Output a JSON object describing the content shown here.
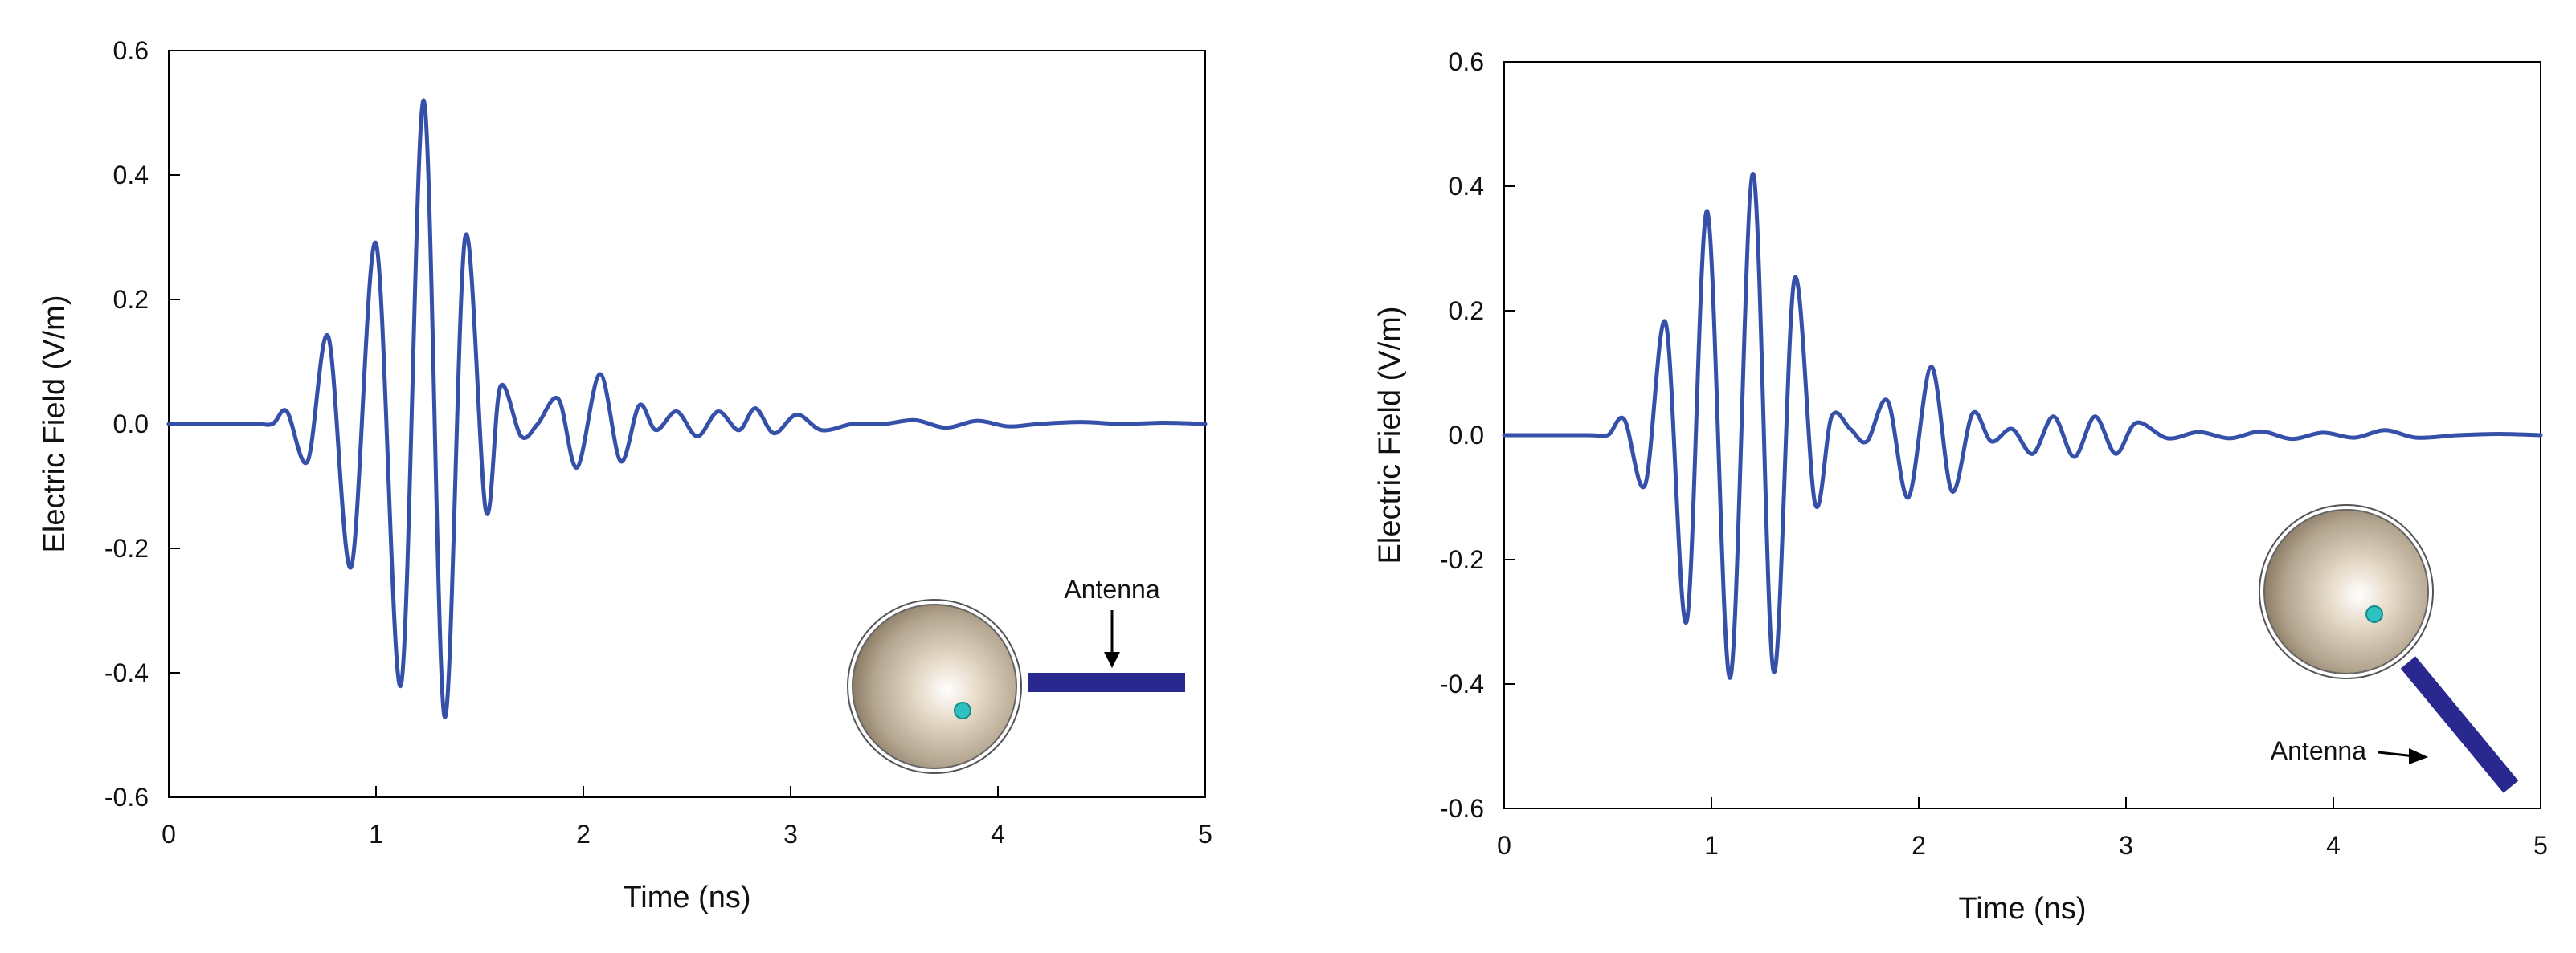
{
  "chart_data": [
    {
      "type": "line",
      "xlabel": "Time (ns)",
      "ylabel": "Electric Field (V/m)",
      "xlim": [
        0,
        5
      ],
      "ylim": [
        -0.6,
        0.6
      ],
      "xticks": [
        "0",
        "1",
        "2",
        "3",
        "4",
        "5"
      ],
      "yticks": [
        "0.6",
        "0.4",
        "0.2",
        "0.0",
        "-0.2",
        "-0.4",
        "-0.6"
      ],
      "grid": false,
      "line_color": "#3550a8",
      "series": [
        {
          "x": [
            0,
            0.4,
            0.5,
            0.57,
            0.67,
            0.77,
            0.88,
            1.0,
            1.12,
            1.23,
            1.33,
            1.43,
            1.53,
            1.6,
            1.7,
            1.78,
            1.88,
            1.97,
            2.08,
            2.18,
            2.27,
            2.35,
            2.45,
            2.55,
            2.65,
            2.75,
            2.83,
            2.92,
            3.03,
            3.15,
            3.3,
            3.45,
            3.6,
            3.75,
            3.9,
            4.05,
            4.2,
            4.4,
            4.6,
            4.8,
            5.0
          ],
          "y": [
            0,
            0,
            0.0,
            0.02,
            -0.06,
            0.14,
            -0.23,
            0.29,
            -0.42,
            0.52,
            -0.47,
            0.3,
            -0.14,
            0.06,
            -0.02,
            0.0,
            0.04,
            -0.07,
            0.08,
            -0.06,
            0.03,
            -0.01,
            0.02,
            -0.02,
            0.02,
            -0.01,
            0.025,
            -0.015,
            0.015,
            -0.01,
            0.0,
            0.0,
            0.006,
            -0.006,
            0.005,
            -0.004,
            0.0,
            0.003,
            0.0,
            0.002,
            0
          ]
        }
      ],
      "annotation": "Antenna",
      "sphere_colors": [
        "#ffffff",
        "#e8dccb",
        "#b4a690",
        "#857760"
      ],
      "antenna_color": "#28288f",
      "dot_color": "#2fc1c1"
    },
    {
      "type": "line",
      "xlabel": "Time (ns)",
      "ylabel": "Electric Field (V/m)",
      "xlim": [
        0,
        5
      ],
      "ylim": [
        -0.6,
        0.6
      ],
      "xticks": [
        "0",
        "1",
        "2",
        "3",
        "4",
        "5"
      ],
      "yticks": [
        "0.6",
        "0.4",
        "0.2",
        "0.0",
        "-0.2",
        "-0.4",
        "-0.6"
      ],
      "grid": false,
      "line_color": "#3550a8",
      "series": [
        {
          "x": [
            0,
            0.4,
            0.5,
            0.58,
            0.68,
            0.78,
            0.88,
            0.98,
            1.09,
            1.2,
            1.3,
            1.4,
            1.5,
            1.58,
            1.67,
            1.75,
            1.85,
            1.95,
            2.06,
            2.16,
            2.26,
            2.35,
            2.45,
            2.55,
            2.65,
            2.75,
            2.85,
            2.95,
            3.05,
            3.2,
            3.35,
            3.5,
            3.65,
            3.8,
            3.95,
            4.1,
            4.25,
            4.4,
            4.6,
            4.8,
            5.0
          ],
          "y": [
            0,
            0,
            0.0,
            0.025,
            -0.08,
            0.18,
            -0.3,
            0.36,
            -0.39,
            0.42,
            -0.38,
            0.25,
            -0.11,
            0.03,
            0.01,
            -0.01,
            0.055,
            -0.1,
            0.11,
            -0.09,
            0.035,
            -0.01,
            0.01,
            -0.03,
            0.03,
            -0.035,
            0.03,
            -0.03,
            0.02,
            -0.005,
            0.005,
            -0.005,
            0.006,
            -0.006,
            0.004,
            -0.004,
            0.008,
            -0.004,
            0.0,
            0.002,
            0
          ]
        }
      ],
      "annotation": "Antenna",
      "sphere_colors": [
        "#ffffff",
        "#e8dccb",
        "#b4a690",
        "#857760"
      ],
      "antenna_color": "#28288f",
      "dot_color": "#2fc1c1"
    }
  ]
}
